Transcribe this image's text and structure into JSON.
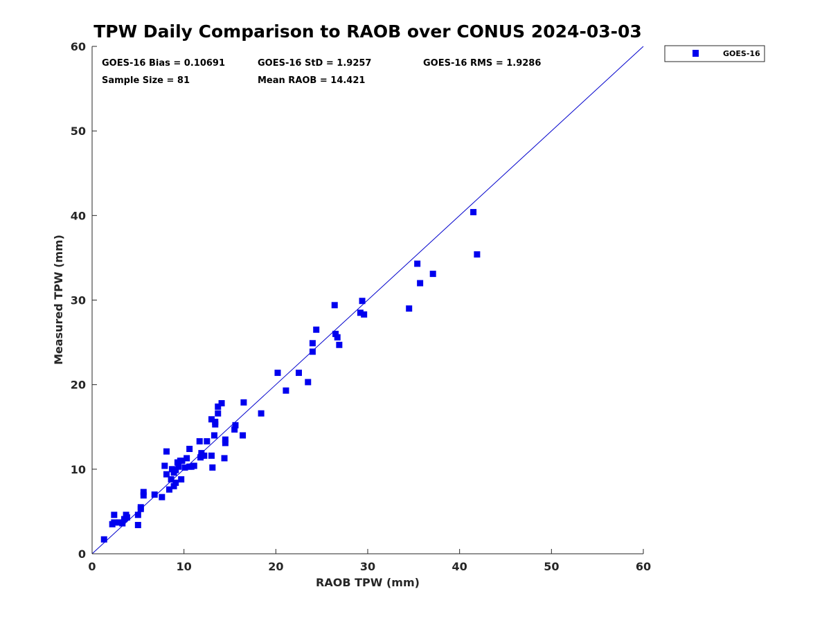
{
  "chart_data": {
    "type": "scatter",
    "title": "TPW Daily Comparison to RAOB over CONUS 2024-03-03",
    "xlabel": "RAOB TPW (mm)",
    "ylabel": "Measured TPW (mm)",
    "xlim": [
      0,
      60
    ],
    "ylim": [
      0,
      60
    ],
    "xticks": [
      "0",
      "10",
      "20",
      "30",
      "40",
      "50",
      "60"
    ],
    "yticks": [
      "0",
      "10",
      "20",
      "30",
      "40",
      "50",
      "60"
    ],
    "grid": false,
    "legend_position": "outside-top-right",
    "reference_line": {
      "name": "1:1 line",
      "from": [
        0,
        0
      ],
      "to": [
        60,
        60
      ],
      "color": "#0000cc"
    },
    "stats": {
      "bias": "GOES-16 Bias = 0.10691",
      "std": "GOES-16 StD = 1.9257",
      "rms": "GOES-16 RMS = 1.9286",
      "sample_size": "Sample Size = 81",
      "mean_raob": "Mean RAOB = 14.421"
    },
    "series": [
      {
        "name": "GOES-16",
        "color": "#0000ee",
        "marker": "square",
        "x": [
          1.3,
          2.2,
          2.4,
          2.4,
          3.0,
          3.3,
          3.5,
          3.7,
          5.0,
          5.0,
          5.3,
          5.6,
          5.6,
          6.8,
          7.6,
          7.9,
          8.1,
          8.1,
          8.4,
          8.6,
          8.7,
          8.9,
          8.9,
          9.1,
          9.1,
          9.3,
          9.4,
          9.7,
          9.8,
          10.1,
          10.3,
          10.6,
          10.8,
          11.1,
          11.7,
          11.8,
          11.9,
          12.2,
          12.5,
          13.0,
          13.0,
          13.1,
          13.3,
          13.4,
          13.4,
          13.7,
          13.7,
          14.1,
          14.4,
          14.5,
          14.5,
          15.5,
          15.6,
          16.4,
          16.5,
          18.4,
          20.2,
          21.1,
          22.5,
          23.5,
          24.0,
          24.0,
          24.4,
          26.4,
          26.5,
          26.7,
          26.9,
          29.2,
          29.4,
          29.6,
          34.5,
          35.4,
          35.7,
          37.1,
          41.5,
          41.9,
          9.6,
          10.6,
          11.9,
          5.3,
          3.8
        ],
        "y": [
          1.7,
          3.5,
          3.7,
          4.6,
          3.7,
          3.6,
          4.1,
          4.6,
          3.4,
          4.6,
          5.3,
          6.9,
          7.3,
          7.0,
          6.7,
          10.4,
          12.1,
          9.4,
          7.6,
          8.8,
          10.0,
          8.0,
          9.6,
          9.9,
          8.4,
          10.8,
          10.3,
          8.8,
          11.0,
          10.2,
          11.3,
          12.4,
          10.3,
          10.4,
          13.3,
          11.4,
          11.9,
          11.6,
          13.3,
          11.6,
          15.9,
          10.2,
          14.0,
          15.6,
          15.3,
          16.6,
          17.4,
          17.8,
          11.3,
          13.1,
          13.5,
          14.7,
          15.2,
          14.0,
          17.9,
          16.6,
          21.4,
          19.3,
          21.4,
          20.3,
          24.9,
          23.9,
          26.5,
          29.4,
          26.0,
          25.6,
          24.7,
          28.5,
          29.9,
          28.3,
          29.0,
          34.3,
          32.0,
          33.1,
          40.4,
          35.4,
          11.0,
          10.3,
          11.6,
          5.5,
          4.3
        ]
      }
    ]
  }
}
